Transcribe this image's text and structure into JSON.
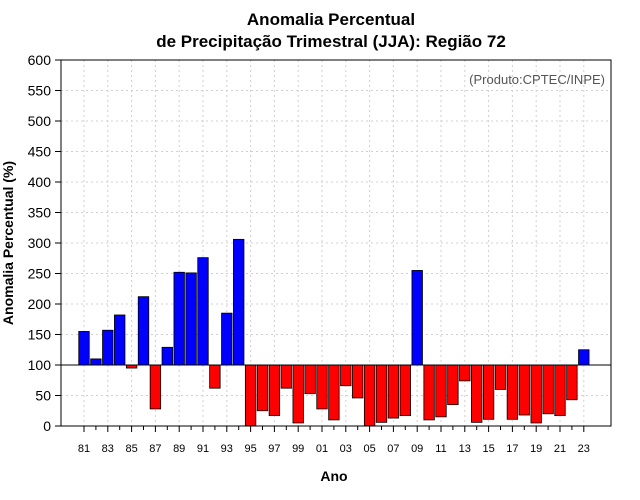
{
  "chart_data": {
    "type": "bar",
    "title": [
      "Anomalia Percentual",
      "de Precipitação Trimestral (JJA): Região 72"
    ],
    "xlabel": "Ano",
    "ylabel": "Anomalia Percentual (%)",
    "annotation": "(Produto:CPTEC/INPE)",
    "baseline": 100,
    "ylim": [
      0,
      600
    ],
    "yticks": [
      0,
      50,
      100,
      150,
      200,
      250,
      300,
      350,
      400,
      450,
      500,
      550,
      600
    ],
    "categories": [
      "81",
      "82",
      "83",
      "84",
      "85",
      "86",
      "87",
      "88",
      "89",
      "90",
      "91",
      "92",
      "93",
      "94",
      "95",
      "96",
      "97",
      "98",
      "99",
      "00",
      "01",
      "02",
      "03",
      "04",
      "05",
      "06",
      "07",
      "08",
      "09",
      "10",
      "11",
      "12",
      "13",
      "14",
      "15",
      "16",
      "17",
      "18",
      "19",
      "20",
      "21",
      "22",
      "23"
    ],
    "xtick_labels": [
      "81",
      "83",
      "85",
      "87",
      "89",
      "91",
      "93",
      "95",
      "97",
      "99",
      "01",
      "03",
      "05",
      "07",
      "09",
      "11",
      "13",
      "15",
      "17",
      "19",
      "21",
      "23"
    ],
    "values": [
      155,
      110,
      157,
      182,
      95,
      212,
      28,
      129,
      252,
      251,
      276,
      62,
      185,
      306,
      1,
      25,
      17,
      62,
      5,
      53,
      28,
      10,
      66,
      46,
      1,
      6,
      13,
      17,
      255,
      10,
      15,
      35,
      74,
      6,
      11,
      60,
      11,
      18,
      5,
      20,
      17,
      43,
      125
    ],
    "colors": {
      "above": "#0000ff",
      "below": "#ff0000",
      "grid": "#d0d0d0",
      "axis": "#000000"
    }
  }
}
